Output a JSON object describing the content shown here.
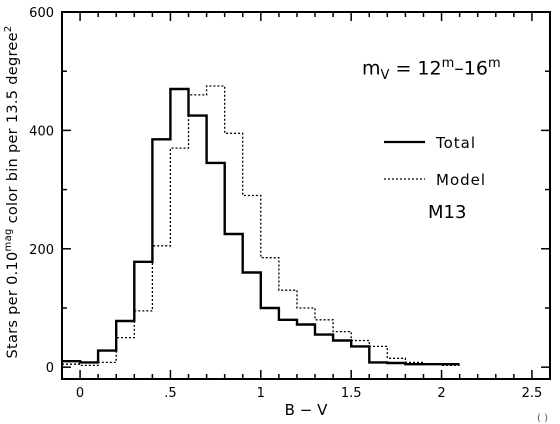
{
  "chart_data": {
    "type": "line",
    "style": "step histogram",
    "xlabel": "B − V",
    "ylabel": {
      "prefix": "Stars per 0.10",
      "sup": "mag",
      "middle": " color bin per 13.5 degree",
      "sup2": "2"
    },
    "xlim": [
      -0.1,
      2.6
    ],
    "ylim": [
      -20,
      600
    ],
    "xticks": [
      "0",
      ".5",
      "1",
      "1.5",
      "2",
      "2.5"
    ],
    "xtick_values": [
      0,
      0.5,
      1,
      1.5,
      2,
      2.5
    ],
    "yticks": [
      "0",
      "200",
      "400",
      "600"
    ],
    "ytick_values": [
      0,
      200,
      400,
      600
    ],
    "bin_edges": [
      -0.1,
      0.0,
      0.1,
      0.2,
      0.3,
      0.4,
      0.5,
      0.6,
      0.7,
      0.8,
      0.9,
      1.0,
      1.1,
      1.2,
      1.3,
      1.4,
      1.5,
      1.6,
      1.7,
      1.8,
      1.9,
      2.0,
      2.1
    ],
    "series": [
      {
        "name": "Total",
        "line": "solid",
        "values": [
          10,
          8,
          28,
          78,
          178,
          385,
          470,
          425,
          345,
          225,
          160,
          100,
          80,
          72,
          55,
          45,
          35,
          8,
          7,
          5,
          5,
          5
        ]
      },
      {
        "name": "Model",
        "line": "dotted",
        "values": [
          5,
          3,
          8,
          50,
          95,
          205,
          370,
          460,
          475,
          395,
          290,
          185,
          130,
          100,
          80,
          60,
          45,
          35,
          15,
          8,
          5,
          3
        ]
      }
    ],
    "annotations": {
      "magnitude": {
        "base": "m",
        "sub": "V",
        "eq": " = 12",
        "sup1": "m",
        "dash": "–16",
        "sup2": "m"
      },
      "cluster": "M13",
      "corner": "( )"
    },
    "legend_position": "right"
  }
}
